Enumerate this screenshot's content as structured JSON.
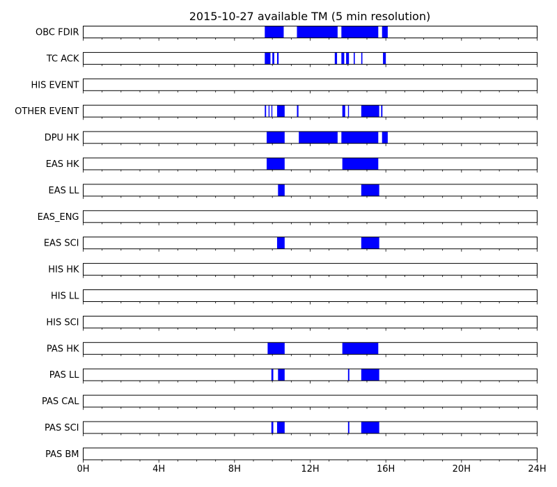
{
  "chart_data": {
    "type": "timeline",
    "title": "2015-10-27 available TM (5 min resolution)",
    "x_unit": "hours",
    "xlim": [
      0,
      24
    ],
    "x_ticks": [
      0,
      4,
      8,
      12,
      16,
      20,
      24
    ],
    "x_tick_labels": [
      "0H",
      "4H",
      "8H",
      "12H",
      "16H",
      "20H",
      "24H"
    ],
    "minor_tick_step_hours": 1,
    "bar_color": "#0000ff",
    "rows": [
      {
        "label": "OBC FDIR",
        "intervals": [
          [
            9.6,
            10.6
          ],
          [
            11.3,
            13.45
          ],
          [
            13.65,
            15.6
          ],
          [
            15.8,
            16.1
          ]
        ]
      },
      {
        "label": "TC ACK",
        "intervals": [
          [
            9.6,
            9.9
          ],
          [
            10.0,
            10.1
          ],
          [
            10.25,
            10.33
          ],
          [
            13.3,
            13.42
          ],
          [
            13.65,
            13.8
          ],
          [
            13.9,
            14.05
          ],
          [
            14.3,
            14.36
          ],
          [
            14.7,
            14.76
          ],
          [
            15.85,
            16.0
          ]
        ]
      },
      {
        "label": "HIS EVENT",
        "intervals": []
      },
      {
        "label": "OTHER EVENT",
        "intervals": [
          [
            9.6,
            9.67
          ],
          [
            9.8,
            9.85
          ],
          [
            9.95,
            10.0
          ],
          [
            10.25,
            10.65
          ],
          [
            11.3,
            11.38
          ],
          [
            13.7,
            13.85
          ],
          [
            14.0,
            14.05
          ],
          [
            14.7,
            15.65
          ],
          [
            15.75,
            15.82
          ]
        ]
      },
      {
        "label": "DPU HK",
        "intervals": [
          [
            9.7,
            10.65
          ],
          [
            11.4,
            13.45
          ],
          [
            13.65,
            15.6
          ],
          [
            15.8,
            16.1
          ]
        ]
      },
      {
        "label": "EAS HK",
        "intervals": [
          [
            9.7,
            10.65
          ],
          [
            13.7,
            15.6
          ]
        ]
      },
      {
        "label": "EAS LL",
        "intervals": [
          [
            10.3,
            10.65
          ],
          [
            14.7,
            15.65
          ]
        ]
      },
      {
        "label": "EAS_ENG",
        "intervals": []
      },
      {
        "label": "EAS SCI",
        "intervals": [
          [
            10.25,
            10.65
          ],
          [
            14.7,
            15.65
          ]
        ]
      },
      {
        "label": "HIS HK",
        "intervals": []
      },
      {
        "label": "HIS LL",
        "intervals": []
      },
      {
        "label": "HIS SCI",
        "intervals": []
      },
      {
        "label": "PAS HK",
        "intervals": [
          [
            9.75,
            10.65
          ],
          [
            13.7,
            15.6
          ]
        ]
      },
      {
        "label": "PAS LL",
        "intervals": [
          [
            9.95,
            10.05
          ],
          [
            10.3,
            10.65
          ],
          [
            14.0,
            14.07
          ],
          [
            14.7,
            15.65
          ]
        ]
      },
      {
        "label": "PAS CAL",
        "intervals": []
      },
      {
        "label": "PAS SCI",
        "intervals": [
          [
            9.95,
            10.05
          ],
          [
            10.25,
            10.65
          ],
          [
            14.0,
            14.07
          ],
          [
            14.7,
            15.65
          ]
        ]
      },
      {
        "label": "PAS BM",
        "intervals": []
      }
    ]
  }
}
